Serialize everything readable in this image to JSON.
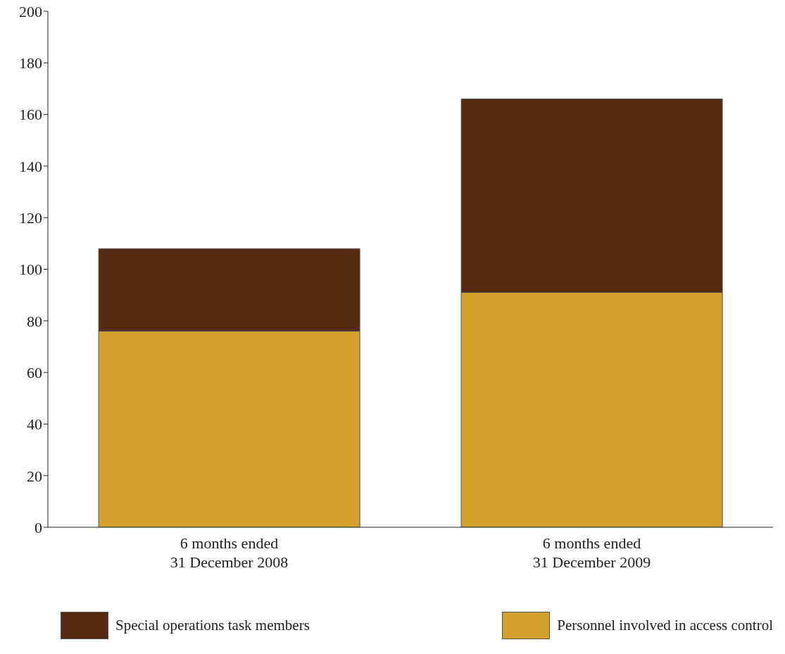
{
  "chart_data": {
    "type": "bar",
    "stacked": true,
    "categories": [
      "6 months ended\n31 December 2008",
      "6 months ended\n31 December 2009"
    ],
    "series": [
      {
        "name": "Personnel involved in access control",
        "color": "#d4a02c",
        "values": [
          76,
          91
        ]
      },
      {
        "name": "Special operations task members",
        "color": "#552a0e",
        "values": [
          32,
          75
        ]
      }
    ],
    "ylim": [
      0,
      200
    ],
    "yticks": [
      0,
      20,
      40,
      60,
      80,
      100,
      120,
      140,
      160,
      180,
      200
    ],
    "grid": false,
    "legend": "bottom"
  }
}
